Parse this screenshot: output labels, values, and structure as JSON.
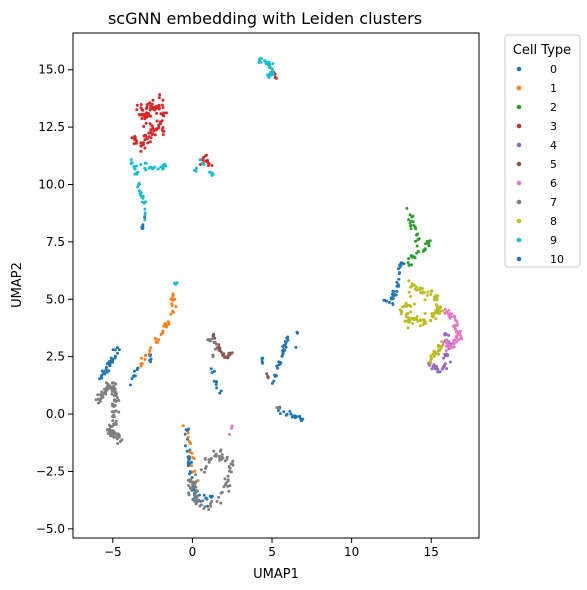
{
  "chart_data": {
    "type": "scatter",
    "title": "scGNN embedding with Leiden clusters",
    "xlabel": "UMAP1",
    "ylabel": "UMAP2",
    "xlim": [
      -7.5,
      18
    ],
    "ylim": [
      -5.4,
      16.6
    ],
    "xticks": [
      -5,
      0,
      5,
      10,
      15
    ],
    "yticks": [
      -5.0,
      -2.5,
      0.0,
      2.5,
      5.0,
      7.5,
      10.0,
      12.5,
      15.0
    ],
    "xtick_labels": [
      "−5",
      "0",
      "5",
      "10",
      "15"
    ],
    "ytick_labels": [
      "−5.0",
      "−2.5",
      "0.0",
      "2.5",
      "5.0",
      "7.5",
      "10.0",
      "12.5",
      "15.0"
    ],
    "grid": false,
    "legend": {
      "title": "Cell Type",
      "placement": "outside-top-right"
    },
    "series": [
      {
        "name": "0",
        "color": "#1f77b4",
        "segments": [
          {
            "path": [
              [
                -6.0,
                1.4
              ],
              [
                -5.2,
                2.1
              ],
              [
                -4.6,
                3.1
              ]
            ],
            "n": 34,
            "spread": 0.2
          },
          {
            "path": [
              [
                -4.0,
                1.3
              ],
              [
                -3.3,
                2.1
              ],
              [
                -2.6,
                2.5
              ]
            ],
            "n": 16,
            "spread": 0.2
          },
          {
            "path": [
              [
                -0.4,
                -0.6
              ],
              [
                -0.3,
                -1.8
              ],
              [
                -0.1,
                -2.6
              ]
            ],
            "n": 22,
            "spread": 0.15
          },
          {
            "path": [
              [
                -0.1,
                -2.8
              ],
              [
                0.2,
                -3.7
              ],
              [
                1.0,
                -3.8
              ],
              [
                1.4,
                -3.5
              ]
            ],
            "n": 24,
            "spread": 0.25
          },
          {
            "path": [
              [
                1.2,
                2.0
              ],
              [
                1.6,
                1.2
              ],
              [
                1.9,
                0.7
              ]
            ],
            "n": 10,
            "spread": 0.12
          },
          {
            "path": [
              [
                5.0,
                1.3
              ],
              [
                5.6,
                2.5
              ],
              [
                6.0,
                3.3
              ]
            ],
            "n": 30,
            "spread": 0.12
          },
          {
            "path": [
              [
                6.5,
                2.9
              ],
              [
                6.6,
                3.6
              ]
            ],
            "n": 4,
            "spread": 0.05
          },
          {
            "path": [
              [
                4.4,
                2.5
              ],
              [
                4.4,
                2.1
              ]
            ],
            "n": 5,
            "spread": 0.06
          },
          {
            "path": [
              [
                5.4,
                0.2
              ],
              [
                6.2,
                -0.1
              ],
              [
                7.0,
                -0.2
              ]
            ],
            "n": 20,
            "spread": 0.1
          },
          {
            "path": [
              [
                -3.2,
                8.0
              ],
              [
                -3.0,
                8.6
              ]
            ],
            "n": 6,
            "spread": 0.06
          }
        ]
      },
      {
        "name": "1",
        "color": "#ff7f0e",
        "segments": [
          {
            "path": [
              [
                -3.3,
                2.1
              ],
              [
                -2.4,
                3.0
              ],
              [
                -1.6,
                3.8
              ],
              [
                -1.2,
                4.5
              ],
              [
                -1.2,
                5.3
              ]
            ],
            "n": 40,
            "spread": 0.14
          },
          {
            "path": [
              [
                -0.6,
                -0.4
              ],
              [
                -0.2,
                -1.0
              ],
              [
                0.2,
                -2.6
              ],
              [
                0.5,
                -3.6
              ]
            ],
            "n": 14,
            "spread": 0.14
          }
        ]
      },
      {
        "name": "2",
        "color": "#2ca02c",
        "segments": [
          {
            "path": [
              [
                13.5,
                6.6
              ],
              [
                14.2,
                7.1
              ],
              [
                15.0,
                7.5
              ]
            ],
            "n": 26,
            "spread": 0.18
          },
          {
            "path": [
              [
                13.6,
                8.9
              ],
              [
                13.8,
                8.2
              ],
              [
                14.2,
                7.6
              ]
            ],
            "n": 20,
            "spread": 0.15
          }
        ]
      },
      {
        "name": "3",
        "color": "#d62728",
        "segments": [
          {
            "path": [
              [
                -3.8,
                12.0
              ],
              [
                -3.2,
                11.8
              ],
              [
                -2.4,
                12.2
              ],
              [
                -2.8,
                12.8
              ],
              [
                -3.3,
                13.2
              ],
              [
                -2.5,
                13.5
              ],
              [
                -1.9,
                13.4
              ],
              [
                -2.1,
                12.6
              ],
              [
                -1.8,
                12.4
              ]
            ],
            "n": 110,
            "spread": 0.3
          },
          {
            "path": [
              [
                0.4,
                10.7
              ],
              [
                0.8,
                11.2
              ],
              [
                1.1,
                10.8
              ]
            ],
            "n": 14,
            "spread": 0.14
          },
          {
            "path": [
              [
                5.1,
                14.9
              ],
              [
                5.3,
                14.6
              ]
            ],
            "n": 5,
            "spread": 0.05
          }
        ]
      },
      {
        "name": "4",
        "color": "#9467bd",
        "segments": [
          {
            "path": [
              [
                15.0,
                2.1
              ],
              [
                15.6,
                1.8
              ],
              [
                15.9,
                2.3
              ],
              [
                16.1,
                3.0
              ],
              [
                15.9,
                3.5
              ]
            ],
            "n": 40,
            "spread": 0.2
          }
        ]
      },
      {
        "name": "5",
        "color": "#8c564b",
        "segments": [
          {
            "path": [
              [
                1.3,
                3.5
              ],
              [
                1.6,
                2.9
              ],
              [
                2.0,
                2.4
              ],
              [
                2.4,
                2.7
              ]
            ],
            "n": 30,
            "spread": 0.13
          },
          {
            "path": [
              [
                4.7,
                1.8
              ],
              [
                4.8,
                1.4
              ]
            ],
            "n": 4,
            "spread": 0.05
          }
        ]
      },
      {
        "name": "6",
        "color": "#e377c2",
        "segments": [
          {
            "path": [
              [
                15.8,
                4.5
              ],
              [
                16.5,
                4.2
              ],
              [
                16.7,
                3.4
              ],
              [
                16.3,
                2.9
              ],
              [
                15.8,
                3.2
              ]
            ],
            "n": 60,
            "spread": 0.22
          },
          {
            "path": [
              [
                2.5,
                -0.5
              ],
              [
                2.3,
                -1.0
              ]
            ],
            "n": 3,
            "spread": 0.05
          }
        ]
      },
      {
        "name": "7",
        "color": "#7f7f7f",
        "segments": [
          {
            "path": [
              [
                -6.1,
                0.4
              ],
              [
                -5.5,
                1.0
              ],
              [
                -5.0,
                1.3
              ],
              [
                -4.8,
                0.5
              ],
              [
                -4.9,
                -0.3
              ],
              [
                -5.2,
                -0.9
              ],
              [
                -4.6,
                -1.0
              ]
            ],
            "n": 120,
            "spread": 0.22
          },
          {
            "path": [
              [
                -0.2,
                -3.2
              ],
              [
                0.4,
                -2.5
              ],
              [
                1.4,
                -1.8
              ],
              [
                2.4,
                -2.0
              ],
              [
                2.2,
                -3.0
              ],
              [
                1.8,
                -3.6
              ],
              [
                1.0,
                -4.2
              ],
              [
                0.3,
                -3.8
              ],
              [
                -0.1,
                -2.9
              ]
            ],
            "n": 90,
            "spread": 0.26
          },
          {
            "path": [
              [
                0.9,
                3.3
              ],
              [
                1.5,
                3.1
              ],
              [
                1.3,
                2.5
              ]
            ],
            "n": 12,
            "spread": 0.14
          },
          {
            "path": [
              [
                5.3,
                0.3
              ],
              [
                5.6,
                0.2
              ]
            ],
            "n": 4,
            "spread": 0.05
          }
        ]
      },
      {
        "name": "8",
        "color": "#bcbd22",
        "segments": [
          {
            "path": [
              [
                13.7,
                5.6
              ],
              [
                14.3,
                5.4
              ],
              [
                15.1,
                5.1
              ],
              [
                15.6,
                4.5
              ],
              [
                14.6,
                4.0
              ],
              [
                13.6,
                4.1
              ],
              [
                13.0,
                4.6
              ],
              [
                14.0,
                4.8
              ]
            ],
            "n": 110,
            "spread": 0.24
          },
          {
            "path": [
              [
                14.9,
                2.2
              ],
              [
                15.3,
                2.7
              ],
              [
                15.6,
                3.1
              ]
            ],
            "n": 26,
            "spread": 0.15
          }
        ]
      },
      {
        "name": "9",
        "color": "#17becf",
        "segments": [
          {
            "path": [
              [
                -3.8,
                11.1
              ],
              [
                -3.3,
                9.8
              ],
              [
                -3.0,
                8.9
              ],
              [
                -2.9,
                8.6
              ]
            ],
            "n": 32,
            "spread": 0.15
          },
          {
            "path": [
              [
                -3.5,
                11.0
              ],
              [
                -2.5,
                10.7
              ],
              [
                -1.6,
                10.8
              ]
            ],
            "n": 18,
            "spread": 0.15
          },
          {
            "path": [
              [
                -0.2,
                10.4
              ],
              [
                0.5,
                10.9
              ],
              [
                1.1,
                10.6
              ],
              [
                1.3,
                10.4
              ]
            ],
            "n": 14,
            "spread": 0.12
          },
          {
            "path": [
              [
                4.2,
                15.5
              ],
              [
                4.7,
                15.3
              ],
              [
                5.1,
                15.0
              ],
              [
                4.8,
                14.7
              ]
            ],
            "n": 36,
            "spread": 0.15
          },
          {
            "path": [
              [
                -1.2,
                5.5
              ],
              [
                -1.0,
                5.8
              ]
            ],
            "n": 5,
            "spread": 0.06
          }
        ]
      },
      {
        "name": "10",
        "color": "#1f77b4",
        "segments": [
          {
            "path": [
              [
                12.5,
                5.0
              ],
              [
                12.9,
                5.6
              ],
              [
                13.0,
                6.4
              ],
              [
                13.5,
                6.8
              ]
            ],
            "n": 30,
            "spread": 0.14
          },
          {
            "path": [
              [
                12.0,
                5.0
              ],
              [
                12.6,
                4.8
              ]
            ],
            "n": 6,
            "spread": 0.06
          }
        ]
      }
    ]
  }
}
